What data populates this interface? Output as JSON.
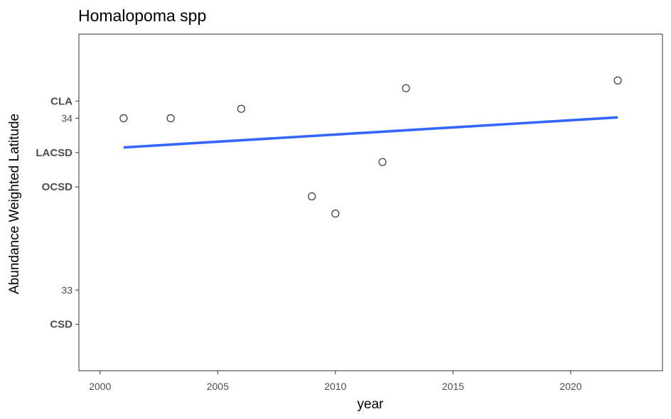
{
  "chart_data": {
    "type": "scatter",
    "title": "Homalopoma spp",
    "xlabel": "year",
    "ylabel": "Abundance Weighted Latitude",
    "xlim": [
      1999.1,
      2023.9
    ],
    "ylim": [
      32.53,
      34.49
    ],
    "x_ticks": [
      2000,
      2005,
      2010,
      2015,
      2020
    ],
    "y_ticks": [
      {
        "value": 32.8,
        "label": "CSD",
        "bold": true
      },
      {
        "value": 33.0,
        "label": "33",
        "bold": false
      },
      {
        "value": 33.6,
        "label": "OCSD",
        "bold": true
      },
      {
        "value": 33.8,
        "label": "LACSD",
        "bold": true
      },
      {
        "value": 34.0,
        "label": "34",
        "bold": false
      },
      {
        "value": 34.1,
        "label": "CLA",
        "bold": true
      }
    ],
    "points": [
      {
        "x": 2001,
        "y": 34.0
      },
      {
        "x": 2003,
        "y": 34.0
      },
      {
        "x": 2006,
        "y": 34.055
      },
      {
        "x": 2009,
        "y": 33.545
      },
      {
        "x": 2010,
        "y": 33.445
      },
      {
        "x": 2012,
        "y": 33.745
      },
      {
        "x": 2013,
        "y": 34.175
      },
      {
        "x": 2022,
        "y": 34.22
      }
    ],
    "trend": {
      "x": [
        2001,
        2022
      ],
      "y": [
        33.83,
        34.005
      ],
      "color": "#3366ff"
    },
    "point_color": "#333333",
    "grid": false
  }
}
